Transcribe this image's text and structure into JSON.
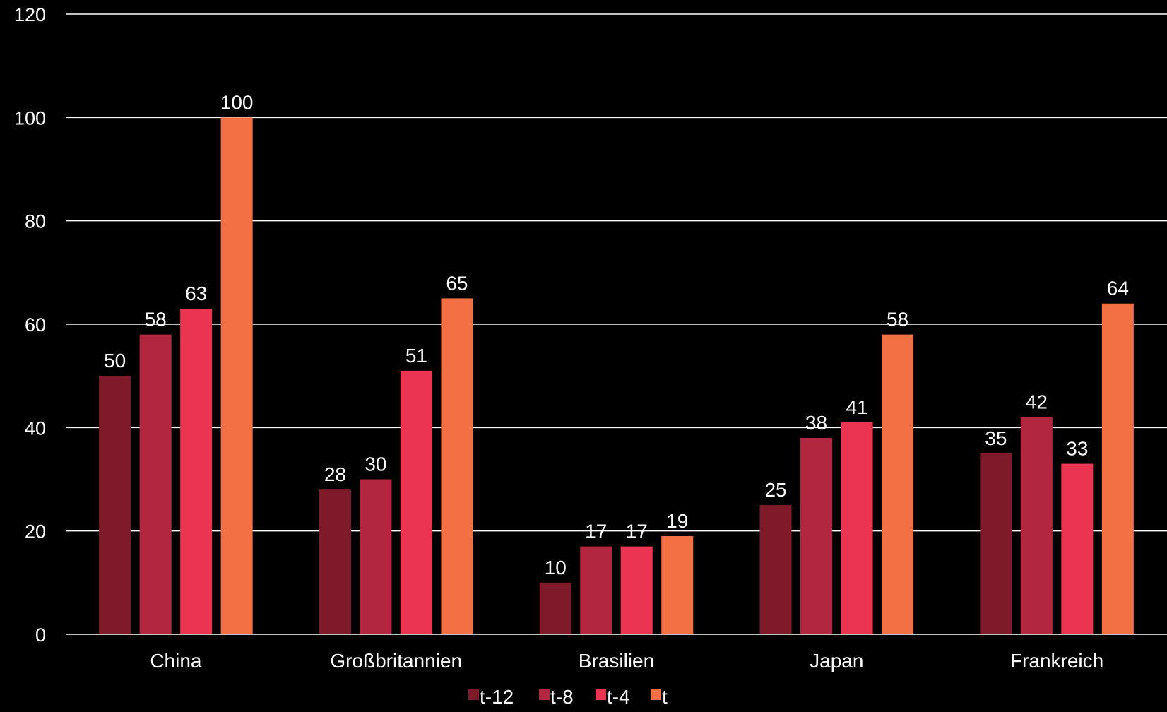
{
  "chart_data": {
    "type": "bar",
    "categories": [
      "China",
      "Großbritannien",
      "Brasilien",
      "Japan",
      "Frankreich"
    ],
    "series": [
      {
        "name": "t-12",
        "color": "#7f1a2a",
        "values": [
          50,
          28,
          10,
          25,
          35
        ]
      },
      {
        "name": "t-8",
        "color": "#b3263f",
        "values": [
          58,
          30,
          17,
          38,
          42
        ]
      },
      {
        "name": "t-4",
        "color": "#ea3452",
        "values": [
          63,
          51,
          17,
          41,
          33
        ]
      },
      {
        "name": "t",
        "color": "#f27043",
        "values": [
          100,
          65,
          19,
          58,
          64
        ]
      }
    ],
    "ylim": [
      0,
      120
    ],
    "yticks": [
      0,
      20,
      40,
      60,
      80,
      100,
      120
    ],
    "grid": true,
    "legend": "bottom-center",
    "background": "#000000",
    "text_color": "#ffffff"
  }
}
